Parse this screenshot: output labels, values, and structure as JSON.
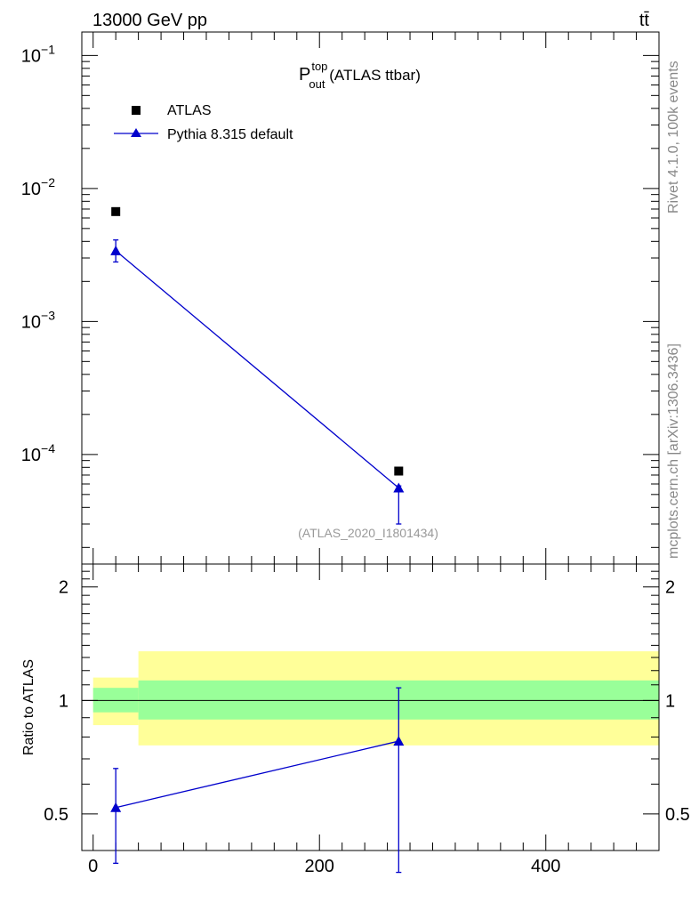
{
  "header": {
    "energy_label": "13000 GeV pp",
    "process_label": "tt̄"
  },
  "side_labels": {
    "rivet": "Rivet 4.1.0,  100k events",
    "mcplots": "mcplots.cern.ch [arXiv:1306.3436]"
  },
  "main_panel": {
    "title_base": "P",
    "title_sup": "top",
    "title_sub": "out",
    "title_rest": " (ATLAS ttbar)",
    "analysis_id": "(ATLAS_2020_I1801434)",
    "legend": {
      "data_label": "ATLAS",
      "mc_label": "Pythia 8.315 default"
    },
    "y_tick_labels": [
      {
        "base": "10",
        "exp": "−1",
        "value": 0.1
      },
      {
        "base": "10",
        "exp": "−2",
        "value": 0.01
      },
      {
        "base": "10",
        "exp": "−3",
        "value": 0.001
      },
      {
        "base": "10",
        "exp": "−4",
        "value": 0.0001
      }
    ]
  },
  "ratio_panel": {
    "ylabel": "Ratio to ATLAS",
    "y_tick_labels": [
      "2",
      "1",
      "0.5"
    ],
    "x_tick_labels": [
      "0",
      "200",
      "400"
    ]
  },
  "colors": {
    "mc": "#0000cc",
    "data": "#000000",
    "band_inner": "#99ff99",
    "band_outer": "#ffff99"
  },
  "chart_data": [
    {
      "type": "scatter",
      "y_scale": "log",
      "xlim": [
        -10,
        500
      ],
      "ylim": [
        1.5e-05,
        0.15
      ],
      "series": [
        {
          "name": "ATLAS",
          "x": [
            20,
            270
          ],
          "y": [
            0.0067,
            7.5e-05
          ],
          "yerr_low": [
            0.0,
            0.0
          ],
          "yerr_high": [
            0.0,
            0.0
          ]
        },
        {
          "name": "Pythia 8.315 default",
          "x": [
            20,
            270
          ],
          "y": [
            0.0034,
            5.6e-05
          ],
          "yerr_low": [
            0.0006,
            2.6e-05
          ],
          "yerr_high": [
            0.0007,
            2e-06
          ]
        }
      ]
    },
    {
      "type": "line",
      "y_scale": "log",
      "xlim": [
        -10,
        500
      ],
      "ylim": [
        0.4,
        2.3
      ],
      "ylabel": "Ratio to ATLAS",
      "bands": [
        {
          "x_from": 0,
          "x_to": 40,
          "inner": [
            0.93,
            1.08
          ],
          "outer": [
            0.86,
            1.15
          ]
        },
        {
          "x_from": 40,
          "x_to": 500,
          "inner": [
            0.89,
            1.13
          ],
          "outer": [
            0.76,
            1.35
          ]
        }
      ],
      "series": [
        {
          "name": "Pythia 8.315 default",
          "x": [
            20,
            270
          ],
          "y": [
            0.52,
            0.78
          ],
          "yerr_low": [
            0.15,
            0.43
          ],
          "yerr_high": [
            0.14,
            0.3
          ]
        }
      ]
    }
  ]
}
